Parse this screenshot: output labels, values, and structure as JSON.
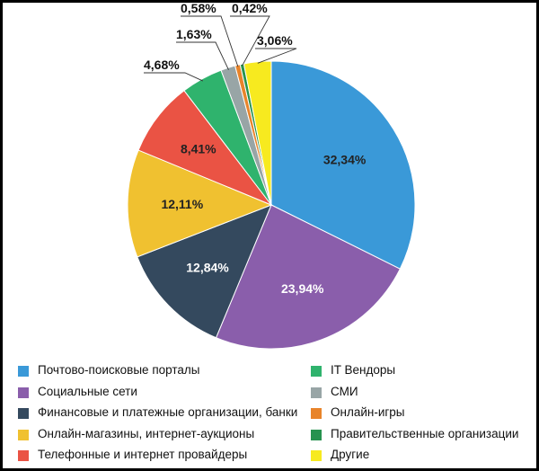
{
  "chart_data": {
    "type": "pie",
    "title": "",
    "start": "top, clockwise",
    "slices": [
      {
        "name": "Почтово-поисковые порталы",
        "value": 32.34,
        "label": "32,34%",
        "color": "#3a99d8",
        "label_color": "#222222"
      },
      {
        "name": "Социальные сети",
        "value": 23.94,
        "label": "23,94%",
        "color": "#8a5eab",
        "label_color": "#ffffff"
      },
      {
        "name": "Финансовые и платежные организации, банки",
        "value": 12.84,
        "label": "12,84%",
        "color": "#34495e",
        "label_color": "#ffffff"
      },
      {
        "name": "Онлайн-магазины, интернет-аукционы",
        "value": 12.11,
        "label": "12,11%",
        "color": "#f0c130",
        "label_color": "#222222"
      },
      {
        "name": "Телефонные и интернет провайдеры",
        "value": 8.41,
        "label": "8,41%",
        "color": "#ea5344",
        "label_color": "#222222"
      },
      {
        "name": "IT Вендоры",
        "value": 4.68,
        "label": "4,68%",
        "color": "#2fb36d",
        "label_color": "#222222"
      },
      {
        "name": "СМИ",
        "value": 1.63,
        "label": "1,63%",
        "color": "#98a5a6",
        "label_color": "#222222"
      },
      {
        "name": "Онлайн-игры",
        "value": 0.58,
        "label": "0,58%",
        "color": "#e8842a",
        "label_color": "#222222"
      },
      {
        "name": "Правительственные организации",
        "value": 0.42,
        "label": "0,42%",
        "color": "#27924f",
        "label_color": "#222222"
      },
      {
        "name": "Другие",
        "value": 3.06,
        "label": "3,06%",
        "color": "#f7ea1f",
        "label_color": "#222222"
      }
    ],
    "legend_columns": [
      [
        "Почтово-поисковые порталы",
        "Социальные сети",
        "Финансовые и платежные организации, банки",
        "Онлайн-магазины, интернет-аукционы",
        "Телефонные и интернет провайдеры"
      ],
      [
        "IT Вендоры",
        "СМИ",
        "Онлайн-игры",
        "Правительственные организации",
        "Другие"
      ]
    ],
    "legend_placement": "bottom"
  }
}
